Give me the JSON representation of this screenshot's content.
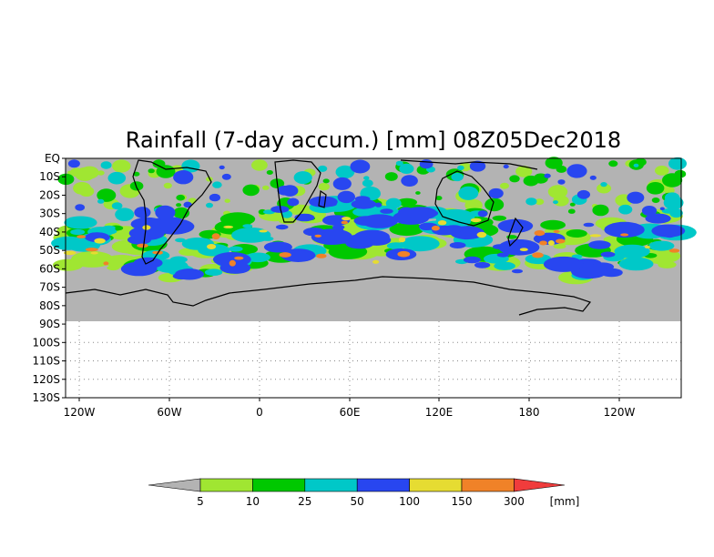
{
  "title": "Rainfall (7-day accum.) [mm] 08Z05Dec2018",
  "lat_labels": [
    "EQ",
    "10S",
    "20S",
    "30S",
    "40S",
    "50S",
    "60S",
    "70S",
    "80S",
    "90S",
    "100S",
    "110S",
    "120S",
    "130S"
  ],
  "lon_labels": [
    "120W",
    "60W",
    "0",
    "60E",
    "120E",
    "180",
    "120W"
  ],
  "colorbar": {
    "ticks": [
      "5",
      "10",
      "25",
      "50",
      "100",
      "150",
      "300"
    ],
    "unit": "[mm]",
    "colors": [
      "#b3b3b3",
      "#a0e632",
      "#00c800",
      "#00c8c8",
      "#2846f0",
      "#e6dc32",
      "#f08228",
      "#f03c3c"
    ]
  },
  "colors": {
    "land": "#b3b3b3",
    "ocean": "#b3b3b3",
    "empty": "#ffffff",
    "coast": "#000000"
  }
}
